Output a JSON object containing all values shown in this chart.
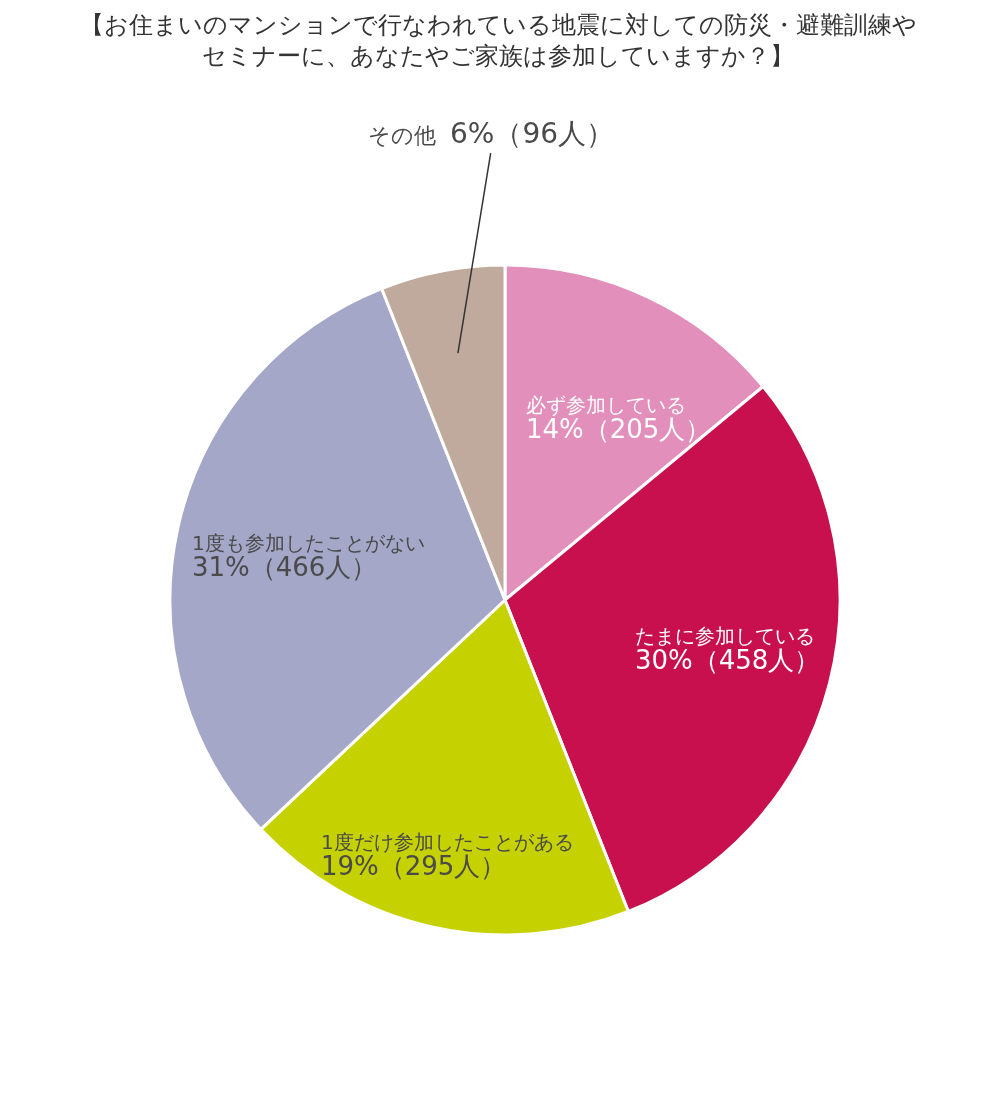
{
  "chart_data": {
    "type": "pie",
    "title": "【お住まいのマンションで行なわれている地震に対しての防災・避難訓練やセミナーに、あなたやご家族は参加していますか？】",
    "categories": [
      "必ず参加している",
      "たまに参加している",
      "1度だけ参加したことがある",
      "1度も参加したことがない",
      "その他"
    ],
    "values": [
      14,
      30,
      19,
      31,
      6
    ],
    "value_labels": [
      "14%（205人）",
      "30%（458人）",
      "19%（295人）",
      "31%（466人）",
      "6%（96人）"
    ],
    "colors": [
      "#e38fbb",
      "#c8104e",
      "#c5d100",
      "#a4a7c8",
      "#bfaa9d"
    ],
    "legend": false
  }
}
